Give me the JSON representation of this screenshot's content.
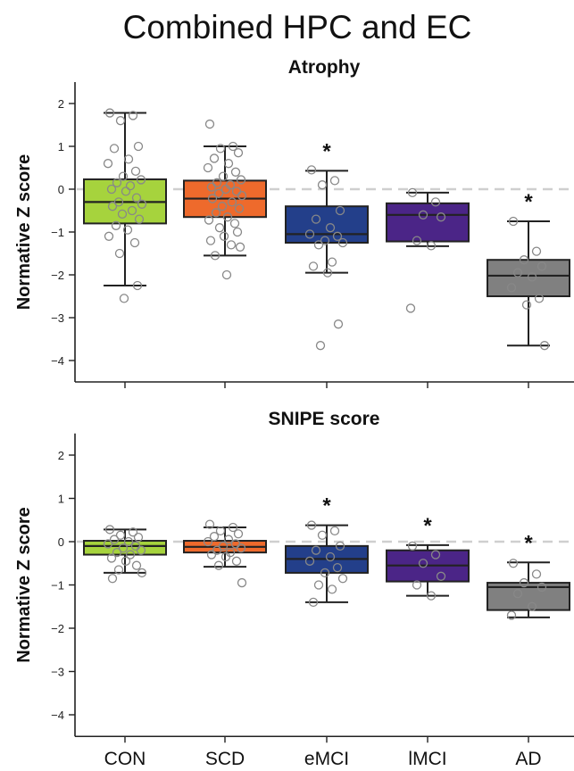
{
  "figure": {
    "title": "Combined HPC and EC"
  },
  "chart_data": [
    {
      "type": "box",
      "title": "Atrophy",
      "ylabel": "Normative Z score",
      "ylim": [
        -4.5,
        2.5
      ],
      "yticks": [
        -4,
        -3,
        -2,
        -1,
        0,
        1,
        2
      ],
      "reference_line": 0,
      "categories": [
        "CON",
        "SCD",
        "eMCI",
        "lMCI",
        "AD"
      ],
      "colors": [
        "#a6d33d",
        "#ee6a2c",
        "#233f8a",
        "#4b2587",
        "#808080"
      ],
      "boxes": [
        {
          "whislo": -2.25,
          "q1": -0.8,
          "med": -0.3,
          "q3": 0.23,
          "whishi": 1.78,
          "significant": false,
          "marker": ""
        },
        {
          "whislo": -1.55,
          "q1": -0.65,
          "med": -0.22,
          "q3": 0.2,
          "whishi": 1.0,
          "significant": false,
          "marker": ""
        },
        {
          "whislo": -1.95,
          "q1": -1.25,
          "med": -1.05,
          "q3": -0.4,
          "whishi": 0.43,
          "significant": true,
          "marker": "*"
        },
        {
          "whislo": -1.33,
          "q1": -1.22,
          "med": -0.6,
          "q3": -0.33,
          "whishi": -0.08,
          "significant": false,
          "marker": ""
        },
        {
          "whislo": -3.65,
          "q1": -2.5,
          "med": -2.02,
          "q3": -1.65,
          "whishi": -0.75,
          "significant": true,
          "marker": "*"
        }
      ],
      "points": [
        [
          1.78,
          1.72,
          1.6,
          1.0,
          0.95,
          0.7,
          0.6,
          0.42,
          0.3,
          0.22,
          0.15,
          0.08,
          0.0,
          -0.05,
          -0.2,
          -0.3,
          -0.35,
          -0.4,
          -0.5,
          -0.58,
          -0.7,
          -0.85,
          -0.95,
          -1.1,
          -1.25,
          -1.5,
          -2.25,
          -2.55
        ],
        [
          1.52,
          1.0,
          0.95,
          0.85,
          0.72,
          0.6,
          0.5,
          0.4,
          0.3,
          0.22,
          0.15,
          0.1,
          0.05,
          0.0,
          -0.05,
          -0.1,
          -0.15,
          -0.22,
          -0.3,
          -0.4,
          -0.45,
          -0.55,
          -0.65,
          -0.72,
          -0.8,
          -0.9,
          -1.0,
          -1.1,
          -1.2,
          -1.3,
          -1.35,
          -1.55,
          -2.0
        ],
        [
          0.45,
          0.2,
          0.1,
          -0.5,
          -0.7,
          -0.9,
          -1.05,
          -1.1,
          -1.2,
          -1.25,
          -1.3,
          -1.7,
          -1.8,
          -1.95,
          -3.15,
          -3.65
        ],
        [
          -0.08,
          -0.3,
          -0.6,
          -0.65,
          -1.2,
          -1.32,
          -2.78
        ],
        [
          -0.75,
          -1.45,
          -1.65,
          -1.8,
          -1.95,
          -2.05,
          -2.3,
          -2.55,
          -2.7,
          -3.65
        ]
      ]
    },
    {
      "type": "box",
      "title": "SNIPE score",
      "ylabel": "Normative Z score",
      "ylim": [
        -4.5,
        2.5
      ],
      "yticks": [
        -4,
        -3,
        -2,
        -1,
        0,
        1,
        2
      ],
      "reference_line": 0,
      "categories": [
        "CON",
        "SCD",
        "eMCI",
        "lMCI",
        "AD"
      ],
      "colors": [
        "#a6d33d",
        "#ee6a2c",
        "#233f8a",
        "#4b2587",
        "#808080"
      ],
      "boxes": [
        {
          "whislo": -0.72,
          "q1": -0.3,
          "med": -0.1,
          "q3": 0.02,
          "whishi": 0.28,
          "significant": false,
          "marker": ""
        },
        {
          "whislo": -0.58,
          "q1": -0.25,
          "med": -0.12,
          "q3": 0.02,
          "whishi": 0.33,
          "significant": false,
          "marker": ""
        },
        {
          "whislo": -1.4,
          "q1": -0.72,
          "med": -0.4,
          "q3": -0.1,
          "whishi": 0.38,
          "significant": true,
          "marker": "*"
        },
        {
          "whislo": -1.25,
          "q1": -0.92,
          "med": -0.55,
          "q3": -0.2,
          "whishi": -0.08,
          "significant": true,
          "marker": "*"
        },
        {
          "whislo": -1.75,
          "q1": -1.58,
          "med": -1.05,
          "q3": -0.95,
          "whishi": -0.48,
          "significant": true,
          "marker": "*"
        }
      ],
      "points": [
        [
          0.28,
          0.22,
          0.15,
          0.1,
          0.05,
          0.0,
          -0.05,
          -0.1,
          -0.15,
          -0.2,
          -0.25,
          -0.3,
          -0.38,
          -0.45,
          -0.55,
          -0.65,
          -0.72,
          -0.85
        ],
        [
          0.4,
          0.33,
          0.25,
          0.18,
          0.12,
          0.05,
          0.0,
          -0.05,
          -0.1,
          -0.15,
          -0.2,
          -0.25,
          -0.3,
          -0.35,
          -0.45,
          -0.55,
          -0.95
        ],
        [
          0.38,
          0.25,
          0.15,
          -0.1,
          -0.2,
          -0.35,
          -0.45,
          -0.6,
          -0.72,
          -0.85,
          -1.0,
          -1.1,
          -1.4
        ],
        [
          -0.1,
          -0.3,
          -0.5,
          -0.8,
          -1.0,
          -1.25
        ],
        [
          -0.5,
          -0.75,
          -0.95,
          -1.05,
          -1.2,
          -1.5,
          -1.7
        ]
      ]
    }
  ]
}
